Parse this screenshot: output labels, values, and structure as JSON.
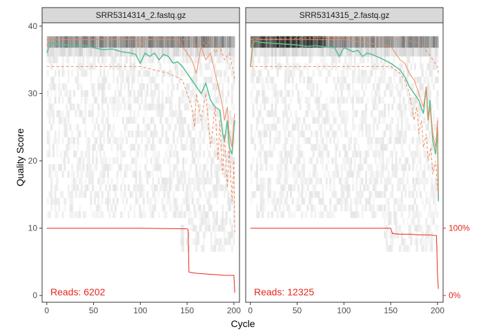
{
  "chart_data": {
    "type": "line",
    "ylabel": "Quality Score",
    "xlabel": "Cycle",
    "x_ticks": [
      0,
      50,
      100,
      150,
      200
    ],
    "y_ticks": [
      0,
      10,
      20,
      30,
      40
    ],
    "xlim": [
      -5,
      206
    ],
    "ylim": [
      -1,
      40.5
    ],
    "secondary_axis": {
      "labels": [
        "100%",
        "0%"
      ],
      "values": [
        10,
        0
      ]
    },
    "colors": {
      "mean": "#5cbf94",
      "quartile": "#f08a5d",
      "reads": "#e8261c"
    },
    "facets": [
      {
        "name": "SRR5314314_2.fastq.gz",
        "reads_label": "Reads:",
        "reads_value": "6202",
        "series": [
          {
            "key": "mean",
            "x": [
              0,
              3,
              5,
              10,
              20,
              30,
              40,
              50,
              60,
              70,
              80,
              90,
              95,
              100,
              105,
              110,
              115,
              120,
              125,
              130,
              135,
              140,
              145,
              150,
              155,
              160,
              165,
              170,
              175,
              180,
              185,
              188,
              190,
              193,
              195,
              198,
              200,
              201
            ],
            "values": [
              36,
              37.2,
              37.5,
              37.3,
              37.2,
              37,
              37.1,
              36.8,
              36.5,
              36.6,
              36.2,
              36,
              35.8,
              34.5,
              36,
              35.5,
              36,
              35,
              35.8,
              35.5,
              34.5,
              34.7,
              34,
              33,
              32,
              31,
              30,
              31.5,
              29,
              28,
              27.5,
              24,
              23,
              26,
              22,
              21,
              25,
              26
            ]
          },
          {
            "key": "median",
            "x": [
              0,
              3,
              5,
              10,
              20,
              30,
              40,
              50,
              60,
              70,
              80,
              90,
              95,
              100,
              105,
              110,
              115,
              120,
              125,
              130,
              135,
              140,
              145,
              150,
              155,
              160,
              165,
              170,
              175,
              180,
              185,
              188,
              190,
              193,
              195,
              198,
              200,
              201
            ],
            "values": [
              37,
              38,
              38,
              38,
              38,
              38,
              38,
              38,
              38,
              38,
              38,
              38,
              38,
              37,
              38,
              38,
              38,
              38,
              38,
              38,
              38,
              38,
              37,
              36,
              35,
              33,
              37,
              35,
              36,
              33,
              30,
              28,
              26,
              28,
              24,
              22,
              26,
              27
            ]
          },
          {
            "key": "q25",
            "x": [
              0,
              100,
              130,
              145,
              150,
              155,
              158,
              160,
              165,
              170,
              175,
              180,
              183,
              185,
              188,
              190,
              193,
              195,
              198,
              200,
              201
            ],
            "values": [
              34,
              34,
              33,
              32,
              30,
              28,
              25,
              30,
              26,
              30,
              22,
              28,
              20,
              26,
              18,
              24,
              16,
              22,
              14,
              20,
              9
            ]
          },
          {
            "key": "q75",
            "x": [
              0,
              50,
              100,
              140,
              150,
              155,
              160,
              165,
              170,
              175,
              180,
              185,
              190,
              195,
              200,
              201
            ],
            "values": [
              38,
              38,
              38,
              38,
              38,
              38,
              37,
              38,
              37,
              38,
              36,
              37,
              35,
              36,
              33,
              32
            ]
          },
          {
            "key": "reads",
            "x": [
              0,
              100,
              150,
              151,
              152,
              155,
              160,
              170,
              180,
              190,
              200,
              201
            ],
            "values": [
              10,
              10,
              9.9,
              9.8,
              3.5,
              3.4,
              3.3,
              3.2,
              3.1,
              3,
              3,
              0.4
            ]
          }
        ]
      },
      {
        "name": "SRR5314315_2.fastq.gz",
        "reads_label": "Reads:",
        "reads_value": "12325",
        "series": [
          {
            "key": "mean",
            "x": [
              0,
              3,
              5,
              10,
              20,
              30,
              40,
              50,
              60,
              70,
              80,
              90,
              95,
              100,
              105,
              110,
              115,
              120,
              125,
              130,
              140,
              150,
              155,
              160,
              165,
              170,
              175,
              180,
              185,
              188,
              190,
              192,
              195,
              198,
              200,
              201
            ],
            "values": [
              34,
              37.5,
              37.8,
              37.6,
              37.5,
              37.4,
              37.3,
              37.2,
              37,
              37.1,
              36.9,
              36.8,
              35.5,
              36.8,
              36.5,
              36.2,
              36.4,
              35.5,
              36,
              35.8,
              35.2,
              34.5,
              34,
              33.5,
              32.5,
              31,
              30,
              29,
              27,
              31,
              26,
              29,
              23,
              21,
              25,
              14
            ]
          },
          {
            "key": "median",
            "x": [
              0,
              3,
              5,
              10,
              50,
              100,
              150,
              155,
              160,
              165,
              170,
              175,
              180,
              185,
              188,
              190,
              192,
              195,
              198,
              200,
              201
            ],
            "values": [
              34,
              38,
              38.3,
              38,
              38,
              38,
              37,
              36,
              35,
              34.5,
              33,
              32,
              30,
              28,
              31,
              26,
              28,
              24,
              22,
              26,
              15
            ]
          },
          {
            "key": "q25",
            "x": [
              0,
              150,
              160,
              165,
              170,
              175,
              178,
              180,
              183,
              185,
              188,
              190,
              193,
              195,
              198,
              200,
              201
            ],
            "values": [
              34,
              34,
              33,
              32,
              30,
              26,
              28,
              24,
              26,
              22,
              24,
              20,
              22,
              18,
              20,
              16,
              15
            ]
          },
          {
            "key": "q75",
            "x": [
              0,
              100,
              150,
              160,
              170,
              180,
              185,
              190,
              195,
              200,
              201
            ],
            "values": [
              38,
              38.4,
              38.2,
              38,
              37.8,
              37.5,
              37,
              36,
              35,
              34,
              33
            ]
          },
          {
            "key": "reads",
            "x": [
              0,
              100,
              150,
              151,
              152,
              160,
              170,
              180,
              190,
              199,
              200,
              201
            ],
            "values": [
              10,
              10,
              10,
              9.5,
              9.2,
              9.1,
              9.1,
              9,
              9,
              8.9,
              3,
              1
            ]
          }
        ]
      }
    ]
  }
}
